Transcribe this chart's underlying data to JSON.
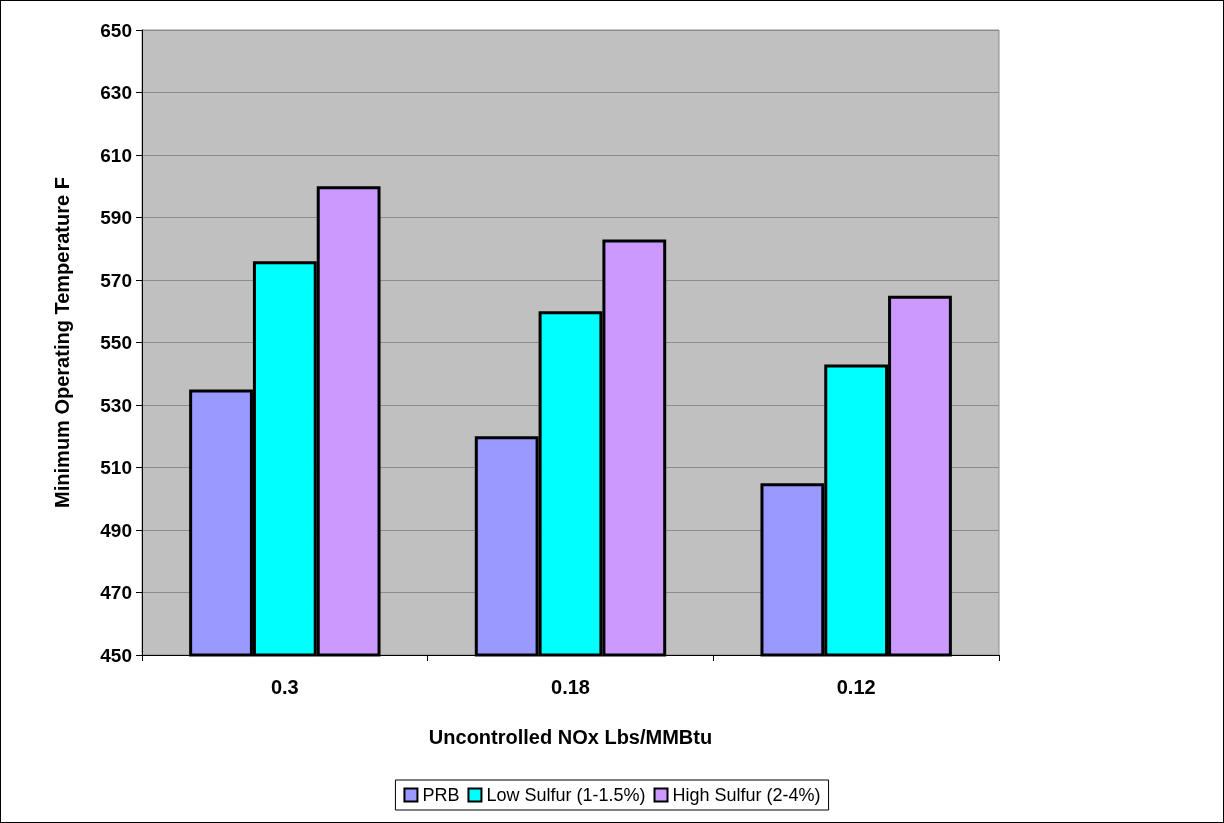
{
  "chart_data": {
    "type": "bar",
    "xlabel": "Uncontrolled NOx Lbs/MMBtu",
    "ylabel": "Minimum Operating Temperature F",
    "categories": [
      "0.3",
      "0.18",
      "0.12"
    ],
    "series": [
      {
        "name": "PRB",
        "color": "#9999ff",
        "values": [
          535,
          520,
          505
        ]
      },
      {
        "name": "Low Sulfur (1-1.5%)",
        "color": "#00ffff",
        "values": [
          576,
          560,
          543
        ]
      },
      {
        "name": "High Sulfur (2-4%)",
        "color": "#cc99ff",
        "values": [
          600,
          583,
          565
        ]
      }
    ],
    "ylim": [
      450,
      650
    ],
    "yticks": [
      450,
      470,
      490,
      510,
      530,
      550,
      570,
      590,
      610,
      630,
      650
    ],
    "grid": "y",
    "legend": "bottom"
  }
}
